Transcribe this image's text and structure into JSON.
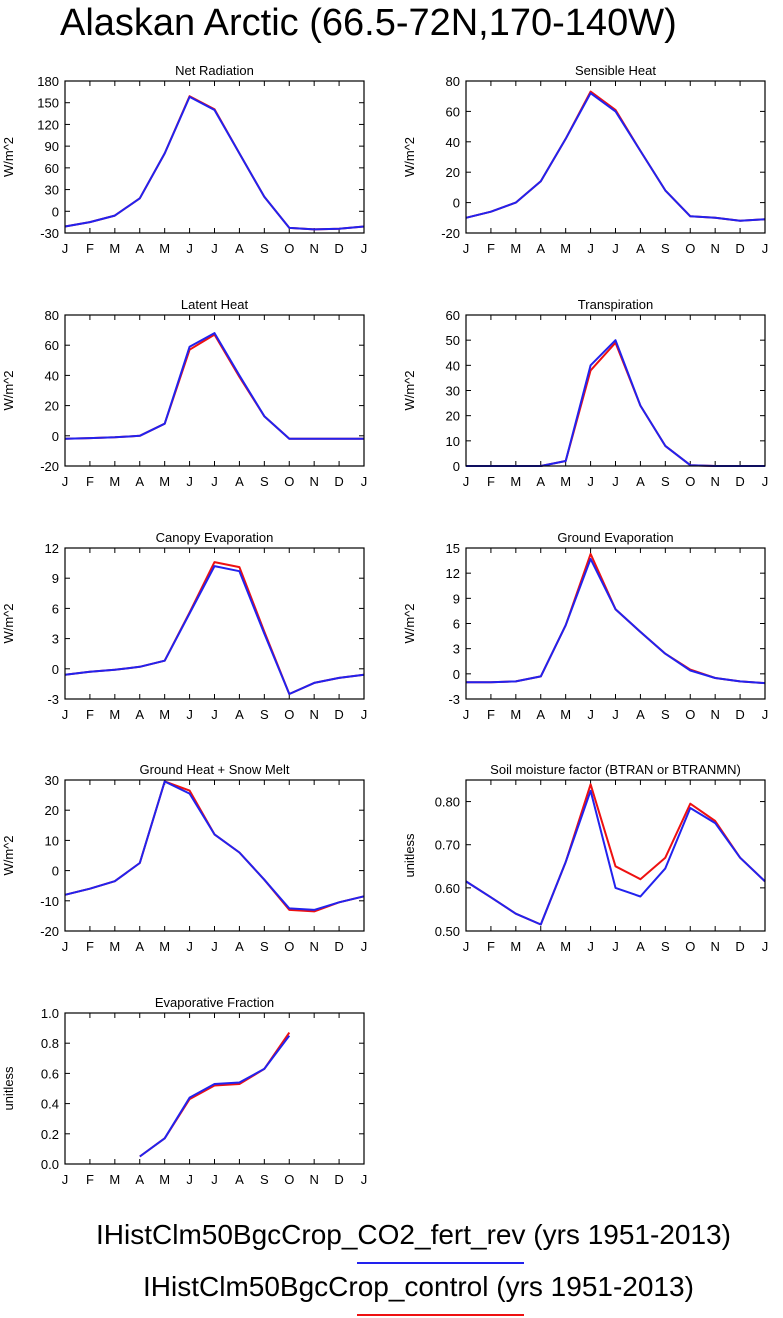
{
  "title": "Alaskan Arctic (66.5-72N,170-140W)",
  "months": [
    "J",
    "F",
    "M",
    "A",
    "M",
    "J",
    "J",
    "A",
    "S",
    "O",
    "N",
    "D",
    "J"
  ],
  "colors": {
    "blue": "#2222ee",
    "red": "#ee1111"
  },
  "legend": [
    {
      "label": "IHistClm50BgcCrop_CO2_fert_rev (yrs 1951-2013)",
      "color": "#2222ee"
    },
    {
      "label": "IHistClm50BgcCrop_control (yrs 1951-2013)",
      "color": "#ee1111"
    }
  ],
  "chart_data": [
    {
      "type": "line",
      "title": "Net Radiation",
      "ylabel": "W/m^2",
      "ylim": [
        -30,
        180
      ],
      "yticks": [
        -30,
        0,
        30,
        60,
        90,
        120,
        150,
        180
      ],
      "series": [
        {
          "name": "IHistClm50BgcCrop_CO2_fert_rev",
          "color": "blue",
          "values": [
            -21,
            -15,
            -6,
            18,
            80,
            158,
            140,
            80,
            20,
            -23,
            -25,
            -24,
            -21
          ]
        },
        {
          "name": "IHistClm50BgcCrop_control",
          "color": "red",
          "values": [
            -21,
            -15,
            -6,
            18,
            80,
            159,
            141,
            80,
            20,
            -23,
            -25,
            -24,
            -21
          ]
        }
      ]
    },
    {
      "type": "line",
      "title": "Sensible Heat",
      "ylabel": "W/m^2",
      "ylim": [
        -20,
        80
      ],
      "yticks": [
        -20,
        0,
        20,
        40,
        60,
        80
      ],
      "series": [
        {
          "name": "IHistClm50BgcCrop_CO2_fert_rev",
          "color": "blue",
          "values": [
            -10,
            -6,
            0,
            14,
            42,
            72,
            60,
            34,
            8,
            -9,
            -10,
            -12,
            -11
          ]
        },
        {
          "name": "IHistClm50BgcCrop_control",
          "color": "red",
          "values": [
            -10,
            -6,
            0,
            14,
            42,
            73,
            61,
            34,
            8,
            -9,
            -10,
            -12,
            -11
          ]
        }
      ]
    },
    {
      "type": "line",
      "title": "Latent Heat",
      "ylabel": "W/m^2",
      "ylim": [
        -20,
        80
      ],
      "yticks": [
        -20,
        0,
        20,
        40,
        60,
        80
      ],
      "series": [
        {
          "name": "IHistClm50BgcCrop_CO2_fert_rev",
          "color": "blue",
          "values": [
            -2,
            -1.5,
            -1,
            0,
            8,
            59,
            68,
            40,
            13,
            -2,
            -2,
            -2,
            -2
          ]
        },
        {
          "name": "IHistClm50BgcCrop_control",
          "color": "red",
          "values": [
            -2,
            -1.5,
            -1,
            0,
            8,
            57,
            67,
            39,
            13,
            -2,
            -2,
            -2,
            -2
          ]
        }
      ]
    },
    {
      "type": "line",
      "title": "Transpiration",
      "ylabel": "W/m^2",
      "ylim": [
        0,
        60
      ],
      "yticks": [
        0,
        10,
        20,
        30,
        40,
        50,
        60
      ],
      "series": [
        {
          "name": "IHistClm50BgcCrop_CO2_fert_rev",
          "color": "blue",
          "values": [
            0,
            0,
            0,
            0,
            2,
            40,
            50,
            24,
            8,
            0.3,
            0,
            0,
            0
          ]
        },
        {
          "name": "IHistClm50BgcCrop_control",
          "color": "red",
          "values": [
            0,
            0,
            0,
            0,
            2,
            38,
            49,
            24,
            8,
            0.3,
            0,
            0,
            0
          ]
        }
      ]
    },
    {
      "type": "line",
      "title": "Canopy Evaporation",
      "ylabel": "W/m^2",
      "ylim": [
        -3,
        12
      ],
      "yticks": [
        -3,
        0,
        3,
        6,
        9,
        12
      ],
      "series": [
        {
          "name": "IHistClm50BgcCrop_CO2_fert_rev",
          "color": "blue",
          "values": [
            -0.6,
            -0.3,
            -0.1,
            0.2,
            0.8,
            5.5,
            10.2,
            9.7,
            3.5,
            -2.5,
            -1.4,
            -0.9,
            -0.6
          ]
        },
        {
          "name": "IHistClm50BgcCrop_control",
          "color": "red",
          "values": [
            -0.6,
            -0.3,
            -0.1,
            0.2,
            0.8,
            5.6,
            10.6,
            10.1,
            3.7,
            -2.5,
            -1.4,
            -0.9,
            -0.6
          ]
        }
      ]
    },
    {
      "type": "line",
      "title": "Ground Evaporation",
      "ylabel": "W/m^2",
      "ylim": [
        -3,
        15
      ],
      "yticks": [
        -3,
        0,
        3,
        6,
        9,
        12,
        15
      ],
      "series": [
        {
          "name": "IHistClm50BgcCrop_CO2_fert_rev",
          "color": "blue",
          "values": [
            -1,
            -1,
            -0.9,
            -0.3,
            5.8,
            13.7,
            7.7,
            5,
            2.4,
            0.4,
            -0.5,
            -0.9,
            -1.1
          ]
        },
        {
          "name": "IHistClm50BgcCrop_control",
          "color": "red",
          "values": [
            -1,
            -1,
            -0.9,
            -0.3,
            5.8,
            14.3,
            7.7,
            5,
            2.4,
            0.5,
            -0.5,
            -0.9,
            -1.1
          ]
        }
      ]
    },
    {
      "type": "line",
      "title": "Ground Heat + Snow Melt",
      "ylabel": "W/m^2",
      "ylim": [
        -20,
        30
      ],
      "yticks": [
        -20,
        -10,
        0,
        10,
        20,
        30
      ],
      "series": [
        {
          "name": "IHistClm50BgcCrop_CO2_fert_rev",
          "color": "blue",
          "values": [
            -8,
            -6,
            -3.5,
            2.5,
            29.5,
            25.5,
            12,
            6,
            -3,
            -12.5,
            -13,
            -10.5,
            -8.5
          ]
        },
        {
          "name": "IHistClm50BgcCrop_control",
          "color": "red",
          "values": [
            -8,
            -6,
            -3.5,
            2.5,
            29.5,
            26.5,
            12,
            6,
            -3,
            -13,
            -13.5,
            -10.5,
            -8.5
          ]
        }
      ]
    },
    {
      "type": "line",
      "title": "Soil moisture factor (BTRAN or BTRANMN)",
      "ylabel": "unitless",
      "ylim": [
        0.5,
        0.85
      ],
      "yticks": [
        0.5,
        0.6,
        0.7,
        0.8
      ],
      "ytick_labels": [
        "0.50",
        "0.60",
        "0.70",
        "0.80"
      ],
      "series": [
        {
          "name": "IHistClm50BgcCrop_CO2_fert_rev",
          "color": "blue",
          "values": [
            0.615,
            0.578,
            0.54,
            0.515,
            0.66,
            0.825,
            0.6,
            0.58,
            0.645,
            0.785,
            0.75,
            0.67,
            0.615
          ]
        },
        {
          "name": "IHistClm50BgcCrop_control",
          "color": "red",
          "values": [
            0.615,
            0.578,
            0.54,
            0.515,
            0.66,
            0.84,
            0.65,
            0.62,
            0.67,
            0.795,
            0.755,
            0.67,
            0.615
          ]
        }
      ]
    },
    {
      "type": "line",
      "title": "Evaporative Fraction",
      "ylabel": "unitless",
      "ylim": [
        0,
        1.0
      ],
      "yticks": [
        0,
        0.2,
        0.4,
        0.6,
        0.8,
        1.0
      ],
      "ytick_labels": [
        "0.0",
        "0.2",
        "0.4",
        "0.6",
        "0.8",
        "1.0"
      ],
      "series": [
        {
          "name": "IHistClm50BgcCrop_CO2_fert_rev",
          "color": "blue",
          "values": [
            null,
            null,
            null,
            0.05,
            0.17,
            0.44,
            0.53,
            0.54,
            0.63,
            0.85,
            null,
            null,
            null
          ]
        },
        {
          "name": "IHistClm50BgcCrop_control",
          "color": "red",
          "values": [
            null,
            null,
            null,
            0.05,
            0.17,
            0.43,
            0.52,
            0.53,
            0.63,
            0.87,
            null,
            null,
            null
          ]
        }
      ]
    }
  ]
}
